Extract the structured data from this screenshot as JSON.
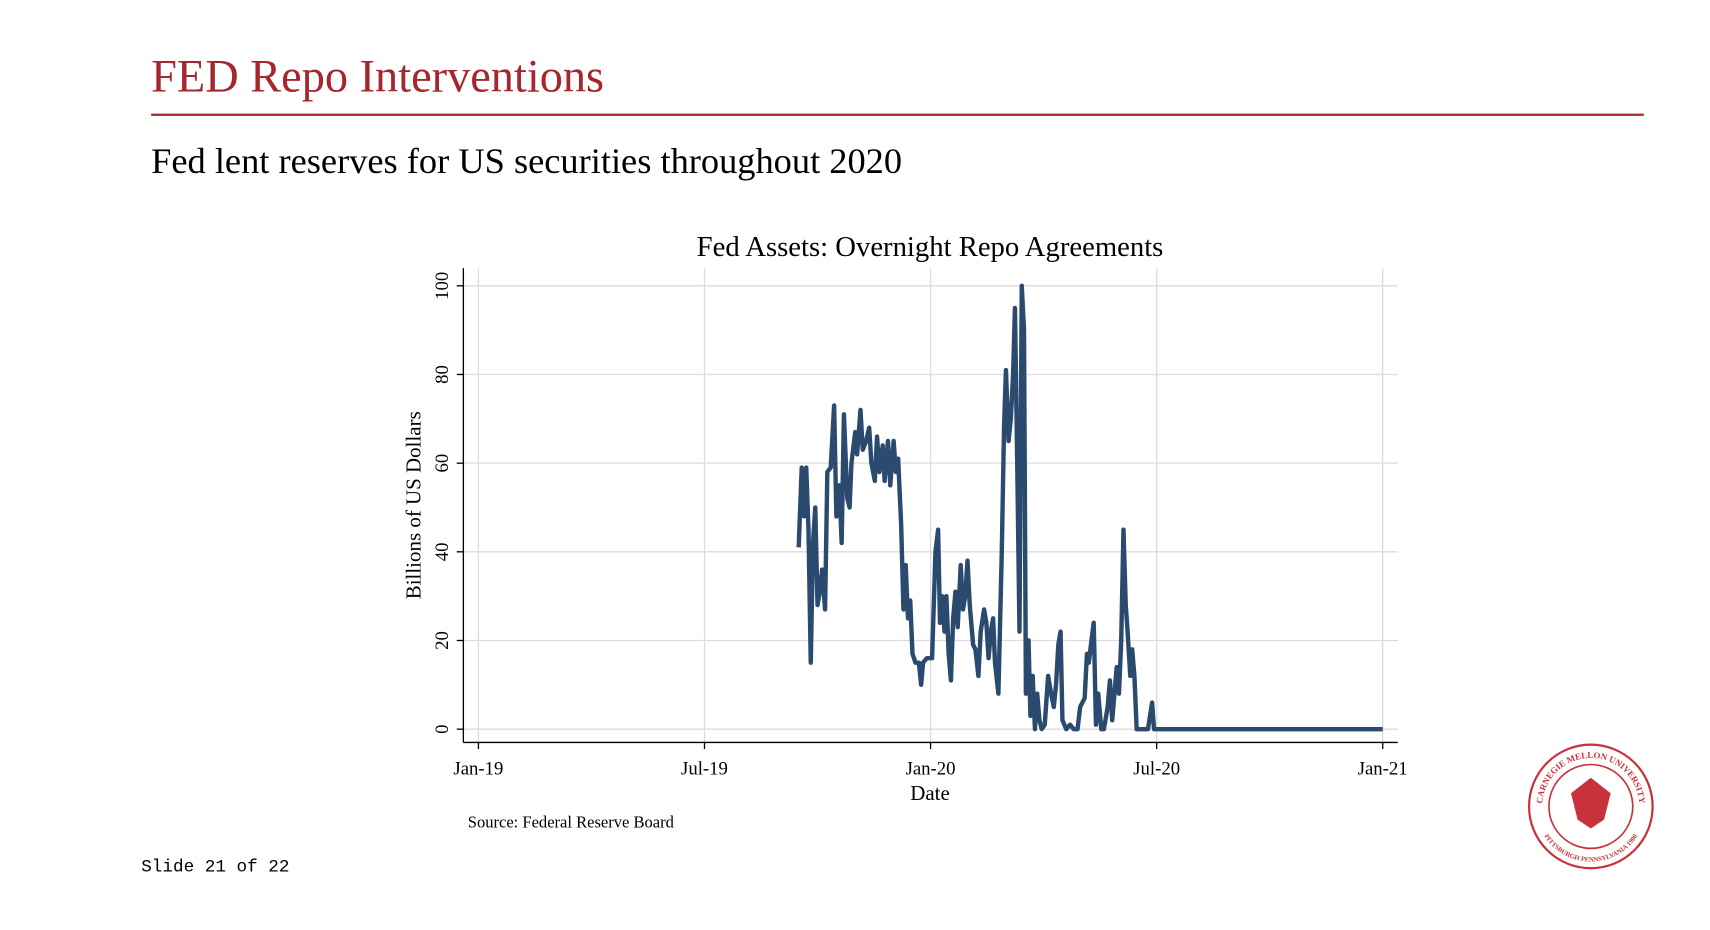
{
  "slide": {
    "title": "FED Repo Interventions",
    "subtitle": "Fed lent reserves for US securities throughout 2020",
    "source": "Source: Federal Reserve Board",
    "page": "Slide 21 of 22",
    "logo_top": "CARNEGIE MELLON UNIVERSITY",
    "logo_bottom": "PITTSBURGH PENNSYLVANIA 1900"
  },
  "chart_data": {
    "type": "line",
    "title": "Fed Assets: Overnight Repo Agreements",
    "x_label": "Date",
    "y_label": "Billions of US Dollars",
    "x": [
      8.5,
      8.58,
      8.64,
      8.7,
      8.76,
      8.82,
      8.88,
      8.94,
      9.0,
      9.06,
      9.12,
      9.2,
      9.26,
      9.35,
      9.44,
      9.5,
      9.58,
      9.64,
      9.7,
      9.79,
      9.85,
      9.9,
      10.0,
      10.05,
      10.14,
      10.2,
      10.29,
      10.37,
      10.43,
      10.52,
      10.58,
      10.64,
      10.73,
      10.78,
      10.87,
      10.93,
      11.02,
      11.08,
      11.14,
      11.22,
      11.28,
      11.34,
      11.4,
      11.46,
      11.52,
      11.6,
      11.69,
      11.75,
      11.8,
      11.9,
      12.04,
      12.13,
      12.2,
      12.25,
      12.31,
      12.37,
      12.42,
      12.48,
      12.54,
      12.6,
      12.66,
      12.72,
      12.8,
      12.86,
      12.92,
      12.98,
      13.04,
      13.13,
      13.19,
      13.27,
      13.33,
      13.42,
      13.48,
      13.54,
      13.6,
      13.66,
      13.71,
      13.8,
      13.89,
      13.95,
      14.0,
      14.07,
      14.13,
      14.19,
      14.24,
      14.3,
      14.36,
      14.42,
      14.48,
      14.53,
      14.6,
      14.65,
      14.71,
      14.77,
      14.83,
      14.89,
      14.95,
      15.03,
      15.12,
      15.2,
      15.27,
      15.33,
      15.39,
      15.45,
      15.5,
      15.6,
      15.7,
      15.8,
      15.9,
      15.97,
      16.09,
      16.15,
      16.2,
      16.27,
      16.33,
      16.39,
      16.45,
      16.53,
      16.6,
      16.7,
      16.76,
      16.82,
      16.88,
      16.94,
      17.0,
      17.06,
      17.12,
      17.18,
      17.23,
      17.3,
      17.35,
      17.41,
      17.47,
      17.6,
      17.77,
      17.88,
      17.93,
      18.5,
      19,
      20,
      21,
      22,
      23,
      24
    ],
    "series": [
      {
        "name": "Overnight Repo Agreements",
        "color": "#2b4a6f",
        "values": [
          41,
          59,
          48,
          59,
          45,
          15,
          42,
          50,
          28,
          31,
          36,
          27,
          58,
          59,
          73,
          48,
          55,
          42,
          71,
          52,
          50,
          60,
          67,
          62,
          72,
          63,
          65,
          68,
          60,
          56,
          66,
          58,
          64,
          56,
          65,
          55,
          65,
          58,
          61,
          46,
          27,
          37,
          25,
          29,
          17,
          15,
          15,
          10,
          15,
          16,
          16,
          40,
          45,
          24,
          30,
          22,
          30,
          17,
          11,
          25,
          31,
          23,
          37,
          27,
          30,
          38,
          28,
          19,
          18,
          12,
          22,
          27,
          24,
          16,
          22,
          25,
          15,
          8,
          40,
          68,
          81,
          65,
          70,
          80,
          95,
          60,
          22,
          100,
          90,
          8,
          20,
          3,
          12,
          0,
          8,
          2,
          0,
          1,
          12,
          8,
          5,
          10,
          19,
          22,
          2,
          0,
          1,
          0,
          0,
          5,
          7,
          17,
          15,
          20,
          24,
          1,
          8,
          0,
          0,
          5,
          11,
          2,
          8,
          14,
          8,
          20,
          45,
          28,
          22,
          12,
          18,
          12,
          0,
          0,
          0,
          6,
          0,
          0,
          0,
          0,
          0,
          0,
          0,
          0
        ]
      }
    ],
    "xlim": [
      -0.4,
      24.4
    ],
    "xticks": [
      {
        "value": 0,
        "label": "Jan-19"
      },
      {
        "value": 6,
        "label": "Jul-19"
      },
      {
        "value": 12,
        "label": "Jan-20"
      },
      {
        "value": 18,
        "label": "Jul-20"
      },
      {
        "value": 24,
        "label": "Jan-21"
      }
    ],
    "ylim": [
      -3,
      104
    ],
    "yticks": [
      0,
      20,
      40,
      60,
      80,
      100
    ],
    "grid": true
  }
}
